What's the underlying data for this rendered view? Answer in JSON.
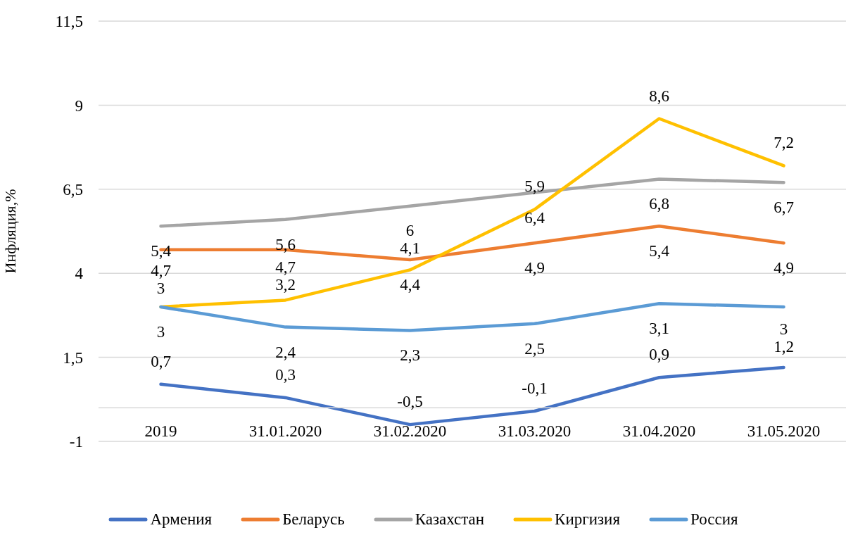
{
  "chart_data": {
    "type": "line",
    "categories": [
      "2019",
      "31.01.2020",
      "31.02.2020",
      "31.03.2020",
      "31.04.2020",
      "31.05.2020"
    ],
    "ylabel": "Инфляция,%",
    "ylim": [
      -1,
      11.5
    ],
    "yticks": [
      -1,
      {
        "value": 1.5,
        "label": "1,5"
      },
      4,
      {
        "value": 6.5,
        "label": "6,5"
      },
      9,
      {
        "value": 11.5,
        "label": "11,5"
      }
    ],
    "series": [
      {
        "name": "Армения",
        "color": "#4472c4",
        "values": [
          0.7,
          0.3,
          -0.5,
          -0.1,
          0.9,
          1.2
        ],
        "value_labels": [
          "0,7",
          "0,3",
          "-0,5",
          "-0,1",
          "0,9",
          "1,2"
        ]
      },
      {
        "name": "Беларусь",
        "color": "#ed7d31",
        "values": [
          4.7,
          4.7,
          4.4,
          4.9,
          5.4,
          4.9
        ],
        "value_labels": [
          "4,7",
          "4,7",
          "4,4",
          "4,9",
          "5,4",
          "4,9"
        ]
      },
      {
        "name": "Казахстан",
        "color": "#a5a5a5",
        "values": [
          5.4,
          5.6,
          6,
          6.4,
          6.8,
          6.7
        ],
        "value_labels": [
          "5,4",
          "5,6",
          "6",
          "6,4",
          "6,8",
          "6,7"
        ]
      },
      {
        "name": "Киргизия",
        "color": "#ffc000",
        "values": [
          3,
          3.2,
          4.1,
          5.9,
          8.6,
          7.2
        ],
        "value_labels": [
          "3",
          "3,2",
          "4,1",
          "5,9",
          "8,6",
          "7,2"
        ]
      },
      {
        "name": "Россия",
        "color": "#5b9bd5",
        "values": [
          3,
          2.4,
          2.3,
          2.5,
          3.1,
          3
        ],
        "value_labels": [
          "3",
          "2,4",
          "2,3",
          "2,5",
          "3,1",
          "3"
        ]
      }
    ],
    "grid": "y",
    "legend": "bottom",
    "marker": "none",
    "line_style": "solid"
  }
}
